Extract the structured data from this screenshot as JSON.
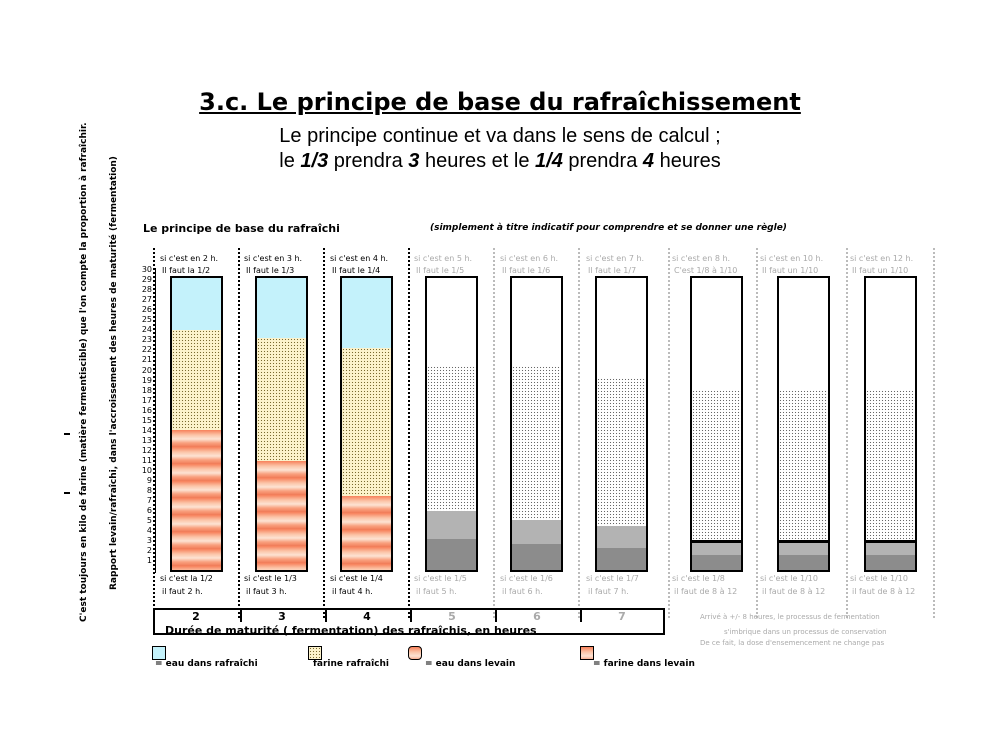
{
  "header": {
    "title": "3.c. Le principe de base du rafraîchissement",
    "line1": "Le principe continue et va dans le sens de calcul ;",
    "line2_a": "le ",
    "line2_b": "1/3",
    "line2_c": " prendra ",
    "line2_d": "3",
    "line2_e": " heures   et   le   ",
    "line2_f": "1/4",
    "line2_g": " prendra ",
    "line2_h": "4",
    "line2_i": " heures"
  },
  "chart": {
    "title": "Le principe de base du rafraîchi",
    "note": "(simplement à titre indicatif pour comprendre et se donner une règle)",
    "ylabel_outer": "C'est toujours en kilo de farine (matière fermentiscible) que l'on compte la proportion à rafraîchir.",
    "ylabel_inner": "Rapport levain/rafraîchi, dans l'accroissement des heures de maturité (fermentation)",
    "ticks": [
      "30",
      "29",
      "28",
      "27",
      "26",
      "25",
      "24",
      "23",
      "22",
      "21",
      "20",
      "19",
      "18",
      "17",
      "16",
      "15",
      "14",
      "13",
      "12",
      "11",
      "10",
      "9",
      "8",
      "7",
      "6",
      "5",
      "4",
      "3",
      "2",
      "1"
    ],
    "columns": [
      {
        "top1": "si c'est en 2 h.",
        "top2": "Il faut la 1/2",
        "bot1": "si c'est la 1/2",
        "bot2": "il faut 2 h."
      },
      {
        "top1": "si c'est en 3 h.",
        "top2": "Il faut le 1/3",
        "bot1": "si c'est le 1/3",
        "bot2": "il faut 3 h."
      },
      {
        "top1": "si c'est en 4 h.",
        "top2": "Il faut le 1/4",
        "bot1": "si c'est le 1/4",
        "bot2": "il faut 4 h."
      },
      {
        "top1": "si c'est en 5 h.",
        "top2": "Il faut le 1/5",
        "bot1": "si c'est le 1/5",
        "bot2": "il faut 5 h."
      },
      {
        "top1": "si c'est en 6 h.",
        "top2": "Il faut le 1/6",
        "bot1": "si c'est le 1/6",
        "bot2": "il faut 6 h."
      },
      {
        "top1": "si c'est en 7 h.",
        "top2": "Il faut le 1/7",
        "bot1": "si c'est le 1/7",
        "bot2": "il faut 7 h."
      },
      {
        "top1": "si c'est en 8 h.",
        "top2": "C'est 1/8 à 1/10",
        "bot1": "si c'est le 1/8",
        "bot2": "il faut de 8 à 12"
      },
      {
        "top1": "si c'est en 10 h.",
        "top2": "Il faut un 1/10",
        "bot1": "si c'est le 1/10",
        "bot2": "il faut de 8 à 12"
      },
      {
        "top1": "si c'est en 12 h.",
        "top2": "Il faut un 1/10",
        "bot1": "si c'est le 1/10",
        "bot2": "il faut de 8 à 12"
      }
    ],
    "xaxis": {
      "cells": [
        "2",
        "3",
        "4",
        "5",
        "6",
        "7"
      ],
      "title": "Durée de maturité ( fermentation) des rafraîchis, en heures"
    },
    "right_note": [
      "Arrivé à +/- 8 heures, le processus de fermentation",
      "s'imbrique dans un processus de conservation",
      "De ce fait, la dose d'ensemencement ne change pas"
    ],
    "legend": [
      "= eau dans rafraîchi",
      "farine rafraîchi",
      "= eau dans levain",
      "= farine dans levain"
    ],
    "colors": {
      "water": "#c4f2fb",
      "flour": "#fdf3cc",
      "levain": "#f7805a",
      "grey_light": "#b3b3b3",
      "grey_dark": "#8c8c8c"
    }
  }
}
